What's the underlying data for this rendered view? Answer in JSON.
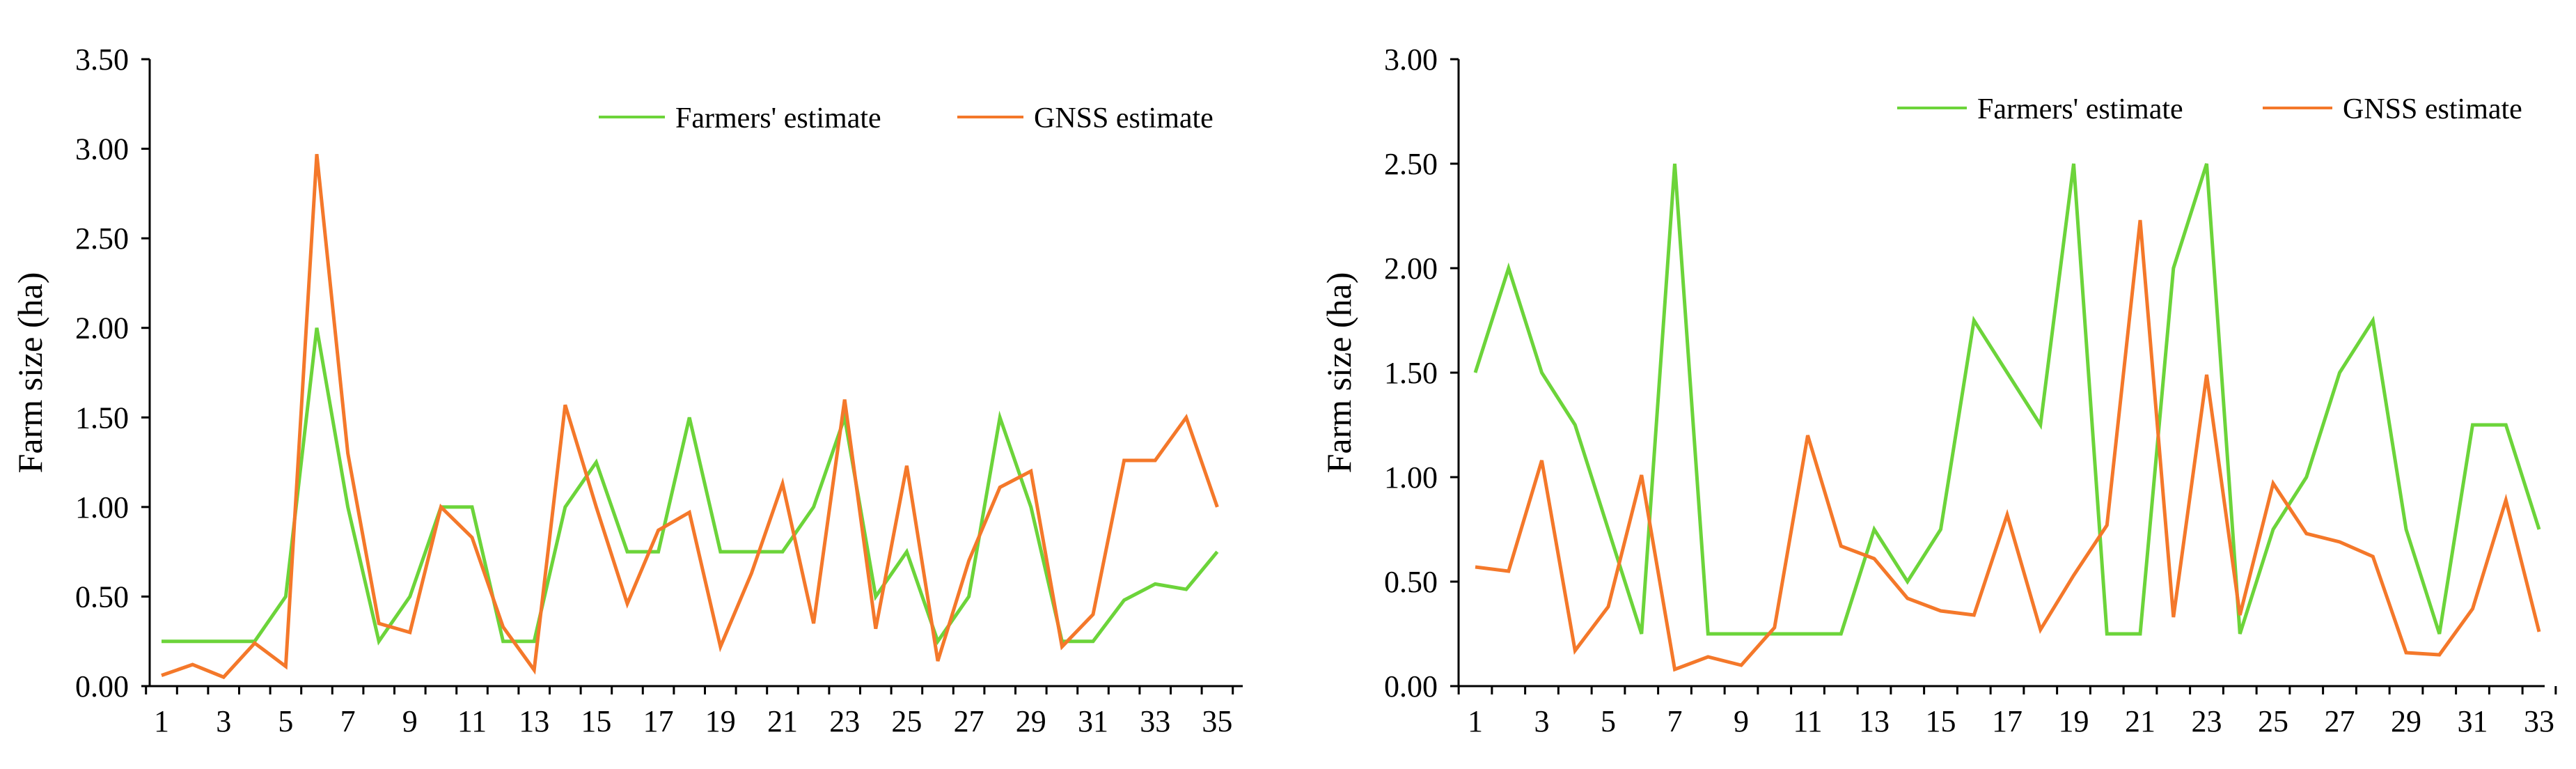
{
  "colors": {
    "farmers": "#6CD43A",
    "gnss": "#F4782A",
    "axis": "#000000"
  },
  "chart_data": [
    {
      "type": "line",
      "ylabel": "Farm size (ha)",
      "xlabel": "",
      "ylim": [
        0,
        3.5
      ],
      "yticks": [
        "0.00",
        "0.50",
        "1.00",
        "1.50",
        "2.00",
        "2.50",
        "3.00",
        "3.50"
      ],
      "xtick_labels": [
        "1",
        "3",
        "5",
        "7",
        "9",
        "11",
        "13",
        "15",
        "17",
        "19",
        "21",
        "23",
        "25",
        "27",
        "29",
        "31",
        "33",
        "35"
      ],
      "legend": "top-right",
      "series": [
        {
          "name": "Farmers' estimate",
          "color": "#6CD43A",
          "values": [
            0.25,
            0.25,
            0.25,
            0.25,
            0.5,
            2.0,
            1.0,
            0.25,
            0.5,
            1.0,
            1.0,
            0.25,
            0.25,
            1.0,
            1.25,
            0.75,
            0.75,
            1.5,
            0.75,
            0.75,
            0.75,
            1.0,
            1.5,
            0.5,
            0.75,
            0.25,
            0.5,
            1.5,
            1.0,
            0.25,
            0.25,
            0.48,
            0.57,
            0.54,
            0.75
          ]
        },
        {
          "name": "GNSS estimate",
          "color": "#F4782A",
          "values": [
            0.06,
            0.12,
            0.05,
            0.24,
            0.11,
            2.97,
            1.3,
            0.35,
            0.3,
            1.0,
            0.83,
            0.33,
            0.09,
            1.57,
            1.0,
            0.46,
            0.87,
            0.97,
            0.22,
            0.63,
            1.13,
            0.35,
            1.6,
            0.32,
            1.23,
            0.14,
            0.7,
            1.11,
            1.2,
            0.22,
            0.4,
            1.26,
            1.26,
            1.5,
            1.0
          ]
        }
      ]
    },
    {
      "type": "line",
      "ylabel": "Farm size (ha)",
      "xlabel": "",
      "ylim": [
        0,
        3.0
      ],
      "yticks": [
        "0.00",
        "0.50",
        "1.00",
        "1.50",
        "2.00",
        "2.50",
        "3.00"
      ],
      "xtick_labels": [
        "1",
        "3",
        "5",
        "7",
        "9",
        "11",
        "13",
        "15",
        "17",
        "19",
        "21",
        "23",
        "25",
        "27",
        "29",
        "31",
        "33"
      ],
      "legend": "top-right",
      "series": [
        {
          "name": "Farmers' estimate",
          "color": "#6CD43A",
          "values": [
            1.5,
            2.0,
            1.5,
            1.25,
            0.75,
            0.25,
            2.5,
            0.25,
            0.25,
            0.25,
            0.25,
            0.25,
            0.75,
            0.5,
            0.75,
            1.75,
            1.5,
            1.25,
            2.5,
            0.25,
            0.25,
            2.0,
            2.5,
            0.25,
            0.75,
            1.0,
            1.5,
            1.75,
            0.75,
            0.25,
            1.25,
            1.25,
            0.75
          ]
        },
        {
          "name": "GNSS estimate",
          "color": "#F4782A",
          "values": [
            0.57,
            0.55,
            1.08,
            0.17,
            0.38,
            1.01,
            0.08,
            0.14,
            0.1,
            0.28,
            1.2,
            0.67,
            0.61,
            0.42,
            0.36,
            0.34,
            0.82,
            0.27,
            0.53,
            0.77,
            2.23,
            0.33,
            1.49,
            0.34,
            0.97,
            0.73,
            0.69,
            0.62,
            0.16,
            0.15,
            0.37,
            0.89,
            0.26
          ]
        }
      ]
    }
  ]
}
